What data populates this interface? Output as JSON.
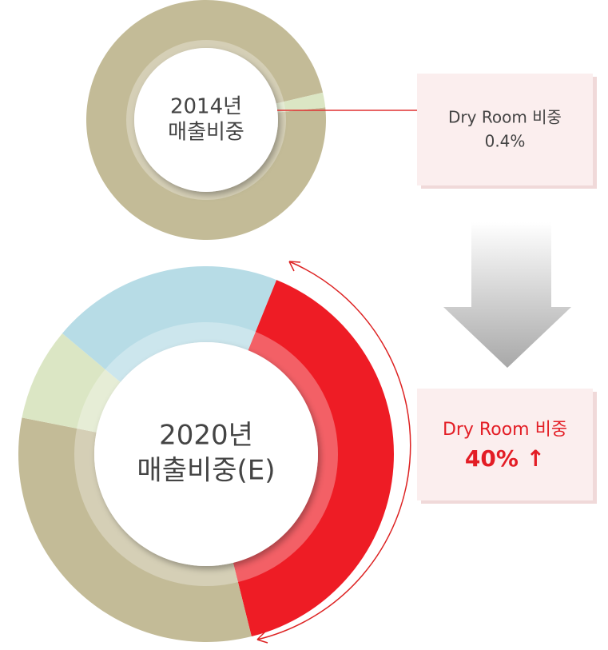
{
  "chart_data": [
    {
      "type": "pie",
      "categories": [
        null,
        null
      ],
      "values": [
        98,
        2
      ],
      "colors": [
        "#c3bb97",
        "#dbe6c4"
      ],
      "center_label": [
        "2014년",
        "매출비중"
      ],
      "annotation": {
        "label": "Dry Room 비중",
        "value": "0.4%"
      }
    },
    {
      "type": "pie",
      "categories": [
        null,
        null,
        null,
        null
      ],
      "values": [
        40,
        32,
        8,
        20
      ],
      "colors": [
        "#ee1c25",
        "#c3bb97",
        "#dbe6c4",
        "#b7dce6"
      ],
      "center_label": [
        "2020년",
        "매출비중(E)"
      ],
      "annotation": {
        "label": "Dry Room 비중",
        "value": "40% ↑"
      }
    }
  ]
}
